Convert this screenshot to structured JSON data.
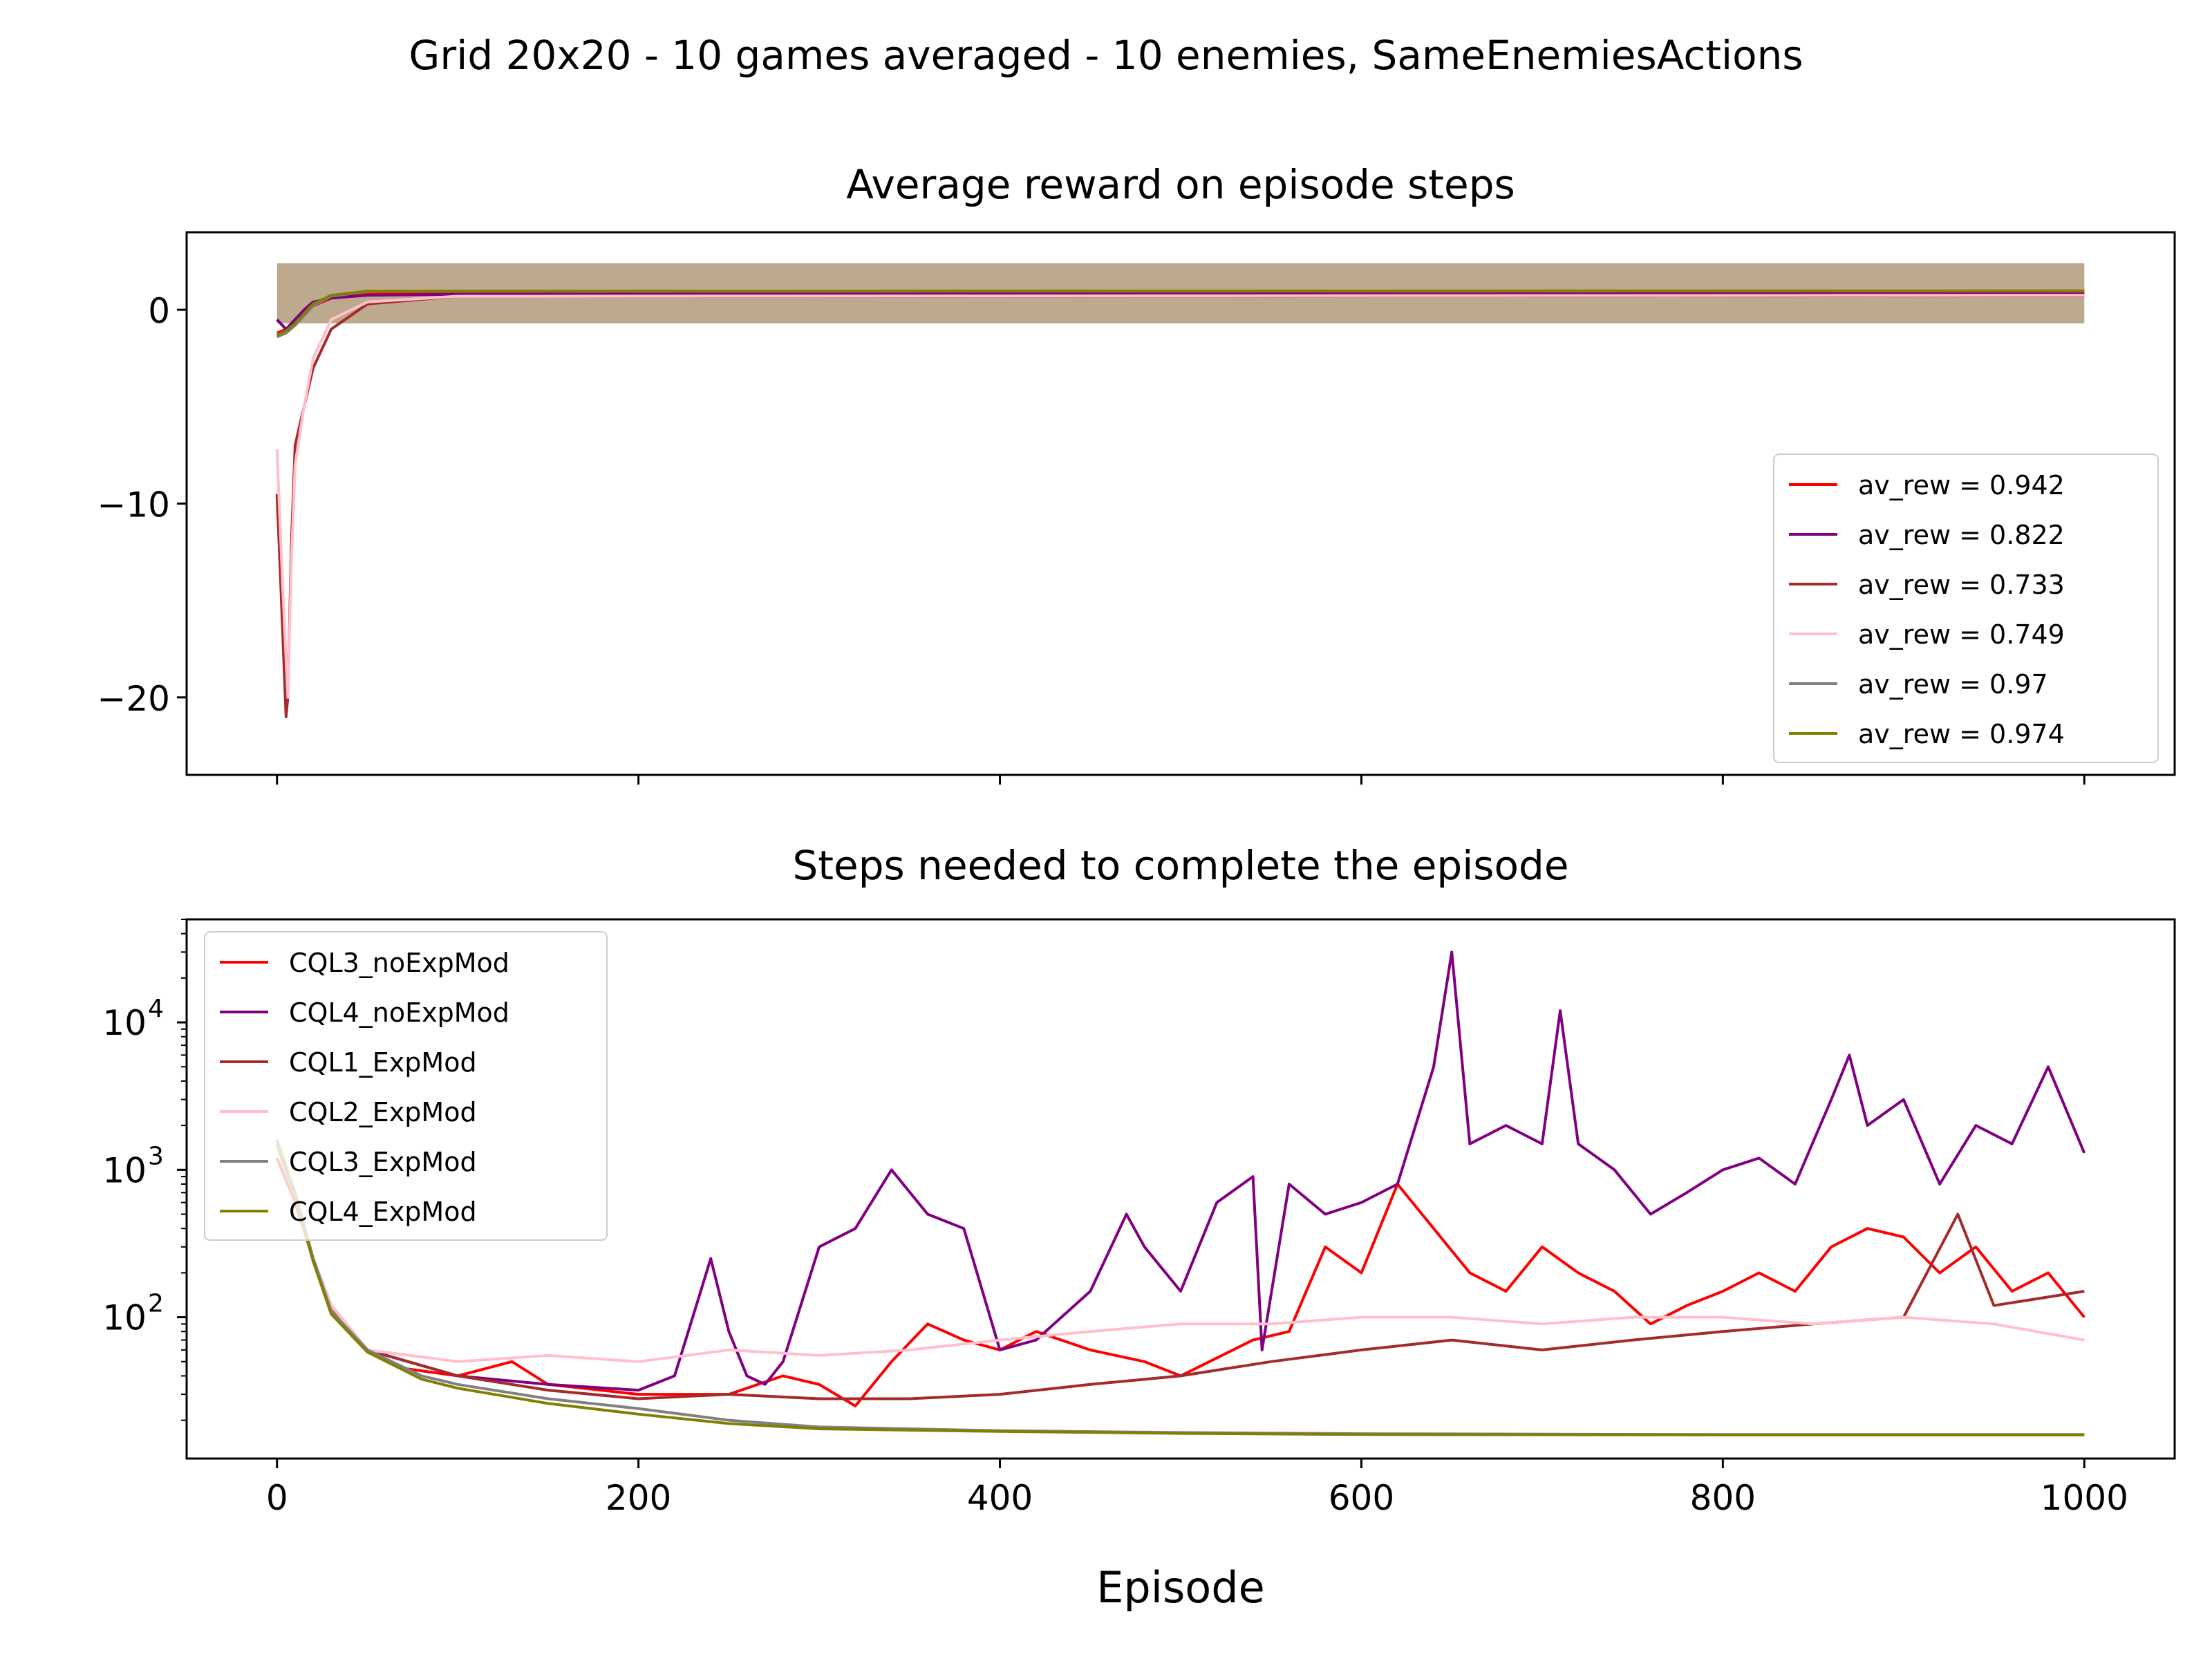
{
  "figure": {
    "suptitle": "Grid 20x20 - 10 games averaged - 10 enemies, SameEnemiesActions"
  },
  "chart_data": [
    {
      "type": "line",
      "title": "Average reward on episode steps",
      "xlabel": "",
      "ylabel": "",
      "xlim": [
        -50,
        1050
      ],
      "ylim": [
        -24,
        4
      ],
      "xticks": [
        0,
        200,
        400,
        600,
        800,
        1000
      ],
      "yticks": [
        0,
        -10,
        -20
      ],
      "ytick_labels": [
        "0",
        "−10",
        "−20"
      ],
      "grid": false,
      "legend_position": "lower-right",
      "band": {
        "lower": -0.7,
        "upper": 2.4,
        "color": "#b5a082"
      },
      "series": [
        {
          "name": "av_rew = 0.942",
          "color": "#ff0000",
          "x": [
            0,
            5,
            10,
            15,
            20,
            30,
            50,
            100,
            200,
            1000
          ],
          "y": [
            -1.2,
            -1.0,
            -0.6,
            -0.2,
            0.2,
            0.6,
            0.8,
            0.9,
            0.94,
            0.94
          ]
        },
        {
          "name": "av_rew = 0.822",
          "color": "#800080",
          "x": [
            0,
            5,
            10,
            15,
            20,
            30,
            50,
            100,
            200,
            1000
          ],
          "y": [
            -0.5,
            -1.0,
            -0.5,
            0.0,
            0.4,
            0.6,
            0.75,
            0.8,
            0.82,
            0.82
          ]
        },
        {
          "name": "av_rew = 0.733",
          "color": "#a52a2a",
          "x": [
            0,
            2,
            5,
            6,
            8,
            10,
            15,
            20,
            30,
            50,
            100,
            1000
          ],
          "y": [
            -9.5,
            -14,
            -21,
            -20,
            -12,
            -7,
            -5,
            -3,
            -1,
            0.3,
            0.7,
            0.73
          ]
        },
        {
          "name": "av_rew = 0.749",
          "color": "#ffc0cb",
          "x": [
            0,
            3,
            6,
            8,
            10,
            15,
            20,
            30,
            50,
            100,
            1000
          ],
          "y": [
            -7.2,
            -14,
            -20,
            -13,
            -8,
            -5,
            -2.5,
            -0.5,
            0.4,
            0.7,
            0.75
          ]
        },
        {
          "name": "av_rew = 0.97",
          "color": "#808080",
          "x": [
            0,
            5,
            10,
            20,
            30,
            50,
            1000
          ],
          "y": [
            -1.4,
            -1.2,
            -0.8,
            0.2,
            0.7,
            0.95,
            0.97
          ]
        },
        {
          "name": "av_rew = 0.974",
          "color": "#808000",
          "x": [
            0,
            5,
            10,
            20,
            30,
            50,
            1000
          ],
          "y": [
            -1.3,
            -1.1,
            -0.7,
            0.3,
            0.75,
            0.96,
            0.974
          ]
        }
      ]
    },
    {
      "type": "line",
      "title": "Steps needed to complete the episode",
      "xlabel": "Episode",
      "ylabel": "",
      "yscale": "log",
      "xlim": [
        -50,
        1050
      ],
      "ylim": [
        11,
        50000
      ],
      "xticks": [
        0,
        200,
        400,
        600,
        800,
        1000
      ],
      "yticks": [
        100,
        1000,
        10000
      ],
      "ytick_labels": [
        [
          "10",
          "2"
        ],
        [
          "10",
          "3"
        ],
        [
          "10",
          "4"
        ]
      ],
      "grid": false,
      "legend_position": "upper-left",
      "series": [
        {
          "name": "CQL3_noExpMod",
          "color": "#ff0000",
          "x": [
            0,
            10,
            20,
            30,
            40,
            50,
            70,
            100,
            130,
            150,
            200,
            250,
            280,
            300,
            320,
            340,
            360,
            380,
            400,
            420,
            450,
            480,
            500,
            540,
            560,
            580,
            600,
            620,
            640,
            660,
            680,
            700,
            720,
            740,
            760,
            780,
            800,
            820,
            840,
            860,
            880,
            900,
            920,
            940,
            960,
            980,
            1000
          ],
          "y": [
            1200,
            600,
            250,
            120,
            80,
            60,
            45,
            40,
            50,
            35,
            30,
            30,
            40,
            35,
            25,
            50,
            90,
            70,
            60,
            80,
            60,
            50,
            40,
            70,
            80,
            300,
            200,
            800,
            400,
            200,
            150,
            300,
            200,
            150,
            90,
            120,
            150,
            200,
            150,
            300,
            400,
            350,
            200,
            300,
            150,
            200,
            100
          ]
        },
        {
          "name": "CQL4_noExpMod",
          "color": "#800080",
          "x": [
            0,
            10,
            20,
            30,
            50,
            100,
            150,
            200,
            220,
            230,
            240,
            250,
            260,
            270,
            280,
            300,
            320,
            340,
            360,
            380,
            400,
            420,
            450,
            470,
            480,
            500,
            520,
            540,
            545,
            560,
            580,
            600,
            620,
            640,
            650,
            660,
            680,
            700,
            710,
            720,
            740,
            760,
            780,
            800,
            820,
            840,
            860,
            870,
            880,
            900,
            920,
            940,
            960,
            980,
            1000
          ],
          "y": [
            1500,
            700,
            250,
            120,
            60,
            40,
            35,
            32,
            40,
            100,
            250,
            80,
            40,
            35,
            50,
            300,
            400,
            1000,
            500,
            400,
            60,
            70,
            150,
            500,
            300,
            150,
            600,
            900,
            60,
            800,
            500,
            600,
            800,
            5000,
            30000,
            1500,
            2000,
            1500,
            12000,
            1500,
            1000,
            500,
            700,
            1000,
            1200,
            800,
            3000,
            6000,
            2000,
            3000,
            800,
            2000,
            1500,
            5000,
            1300
          ]
        },
        {
          "name": "CQL1_ExpMod",
          "color": "#a52a2a",
          "x": [
            0,
            10,
            20,
            30,
            50,
            100,
            150,
            200,
            250,
            300,
            350,
            400,
            450,
            500,
            550,
            600,
            650,
            700,
            750,
            800,
            850,
            900,
            930,
            950,
            1000
          ],
          "y": [
            1500,
            700,
            250,
            120,
            60,
            40,
            32,
            28,
            30,
            28,
            28,
            30,
            35,
            40,
            50,
            60,
            70,
            60,
            70,
            80,
            90,
            100,
            500,
            120,
            150
          ]
        },
        {
          "name": "CQL2_ExpMod",
          "color": "#ffc0cb",
          "x": [
            0,
            10,
            20,
            30,
            50,
            100,
            150,
            200,
            250,
            300,
            350,
            400,
            450,
            500,
            550,
            600,
            650,
            700,
            750,
            800,
            850,
            900,
            950,
            1000
          ],
          "y": [
            1400,
            650,
            250,
            120,
            60,
            50,
            55,
            50,
            60,
            55,
            60,
            70,
            80,
            90,
            90,
            100,
            100,
            90,
            100,
            100,
            90,
            100,
            90,
            70
          ]
        },
        {
          "name": "CQL3_ExpMod",
          "color": "#808080",
          "x": [
            0,
            10,
            20,
            30,
            50,
            80,
            100,
            150,
            200,
            250,
            300,
            400,
            500,
            600,
            800,
            1000
          ],
          "y": [
            1600,
            700,
            250,
            110,
            60,
            40,
            35,
            28,
            24,
            20,
            18,
            17,
            16.5,
            16.2,
            16,
            16
          ]
        },
        {
          "name": "CQL4_ExpMod",
          "color": "#808000",
          "x": [
            0,
            10,
            20,
            30,
            50,
            80,
            100,
            150,
            200,
            250,
            300,
            400,
            500,
            600,
            800,
            1000
          ],
          "y": [
            1500,
            650,
            240,
            105,
            58,
            38,
            33,
            26,
            22,
            19,
            17.5,
            16.8,
            16.3,
            16,
            15.9,
            15.9
          ]
        }
      ]
    }
  ]
}
